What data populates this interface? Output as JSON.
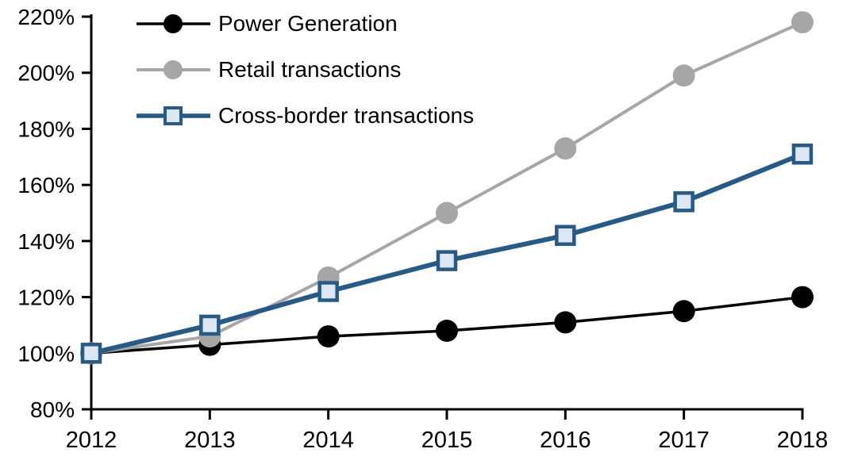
{
  "chart_data": {
    "type": "line",
    "title": "",
    "xlabel": "",
    "ylabel": "",
    "x": [
      "2012",
      "2013",
      "2014",
      "2015",
      "2016",
      "2017",
      "2018"
    ],
    "series": [
      {
        "name": "Power Generation",
        "values": [
          100,
          103,
          106,
          108,
          111,
          115,
          120
        ],
        "color": "#000000",
        "line_width": 3.5,
        "marker": {
          "shape": "circle",
          "fill": "#000000",
          "radius": 14
        }
      },
      {
        "name": "Retail transactions",
        "values": [
          100,
          106,
          127,
          150,
          173,
          199,
          218
        ],
        "color": "#a6a6a6",
        "line_width": 4,
        "marker": {
          "shape": "circle",
          "fill": "#a6a6a6",
          "radius": 14
        }
      },
      {
        "name": "Cross-border transactions",
        "values": [
          100,
          110,
          122,
          133,
          142,
          154,
          171
        ],
        "color": "#275a84",
        "line_width": 6,
        "marker": {
          "shape": "square",
          "fill": "#dce7f3",
          "stroke": "#275a84",
          "side": 22,
          "stroke_width": 4.5
        }
      }
    ],
    "y_axis": {
      "min": 80,
      "max": 220,
      "tick_step": 20,
      "tick_labels": [
        "220%",
        "200%",
        "180%",
        "160%",
        "140%",
        "120%",
        "100%",
        "80%"
      ]
    },
    "x_axis": {
      "tick_labels": [
        "2012",
        "2013",
        "2014",
        "2015",
        "2016",
        "2017",
        "2018"
      ]
    },
    "ylim": [
      80,
      220
    ],
    "grid": false,
    "legend_position": "top-left",
    "background": "#ffffff",
    "axis_color": "#000000"
  }
}
